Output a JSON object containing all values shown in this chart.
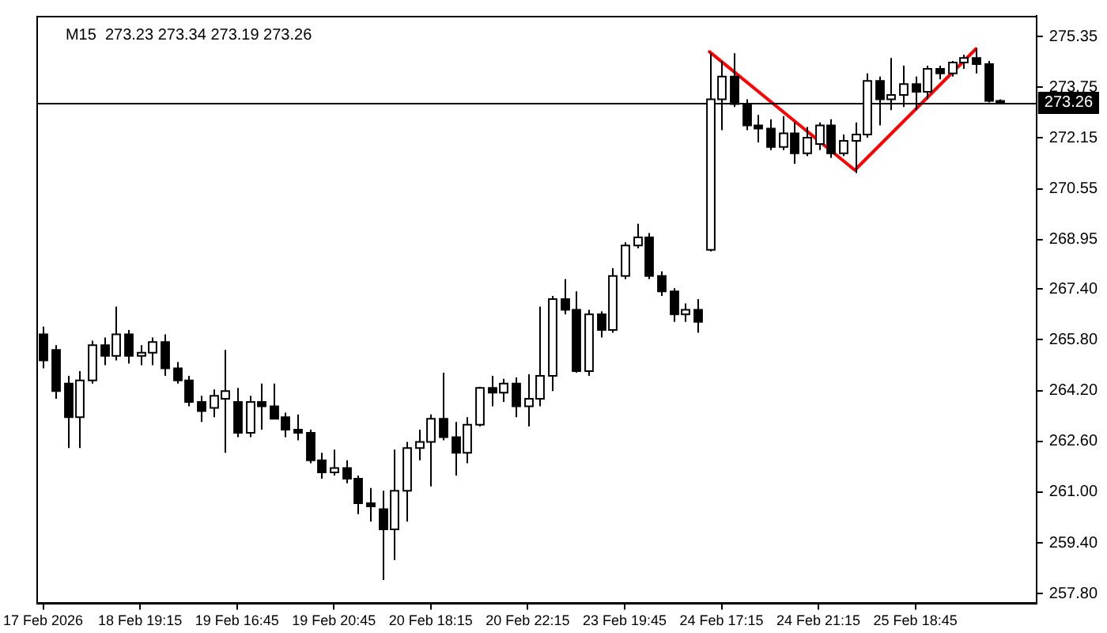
{
  "chart_data": {
    "type": "candlestick",
    "title": "M15  273.23 273.34 273.19 273.26",
    "color": "#000000",
    "categories": [
      "17 Feb 2026",
      null,
      null,
      null,
      null,
      null,
      null,
      null,
      "18 Feb 19:15",
      null,
      null,
      null,
      null,
      null,
      null,
      null,
      "19 Feb 16:45",
      null,
      null,
      null,
      null,
      null,
      null,
      null,
      "19 Feb 20:45",
      null,
      null,
      null,
      null,
      null,
      null,
      null,
      "20 Feb 18:15",
      null,
      null,
      null,
      null,
      null,
      null,
      null,
      "20 Feb 22:15",
      null,
      null,
      null,
      null,
      null,
      null,
      null,
      "23 Feb 19:45",
      null,
      null,
      null,
      null,
      null,
      null,
      null,
      "24 Feb 17:15",
      null,
      null,
      null,
      null,
      null,
      null,
      null,
      "24 Feb 21:15",
      null,
      null,
      null,
      null,
      null,
      null,
      null,
      "25 Feb 18:45",
      null,
      null,
      null,
      null,
      null,
      null,
      null
    ],
    "ohlc": [
      [
        265.97,
        266.21,
        264.9,
        265.15
      ],
      [
        265.48,
        265.63,
        263.94,
        264.18
      ],
      [
        264.42,
        264.66,
        262.39,
        263.36
      ],
      [
        263.36,
        264.81,
        262.39,
        264.52
      ],
      [
        264.52,
        265.77,
        264.42,
        265.63
      ],
      [
        265.63,
        265.87,
        265.0,
        265.29
      ],
      [
        265.29,
        266.84,
        265.15,
        265.97
      ],
      [
        265.97,
        266.11,
        265.05,
        265.29
      ],
      [
        265.29,
        265.63,
        265.0,
        265.39
      ],
      [
        265.39,
        265.87,
        265.0,
        265.73
      ],
      [
        265.73,
        265.97,
        264.66,
        264.9
      ],
      [
        264.9,
        265.1,
        264.42,
        264.52
      ],
      [
        264.52,
        264.66,
        263.7,
        263.84
      ],
      [
        263.84,
        264.03,
        263.21,
        263.55
      ],
      [
        263.65,
        264.23,
        263.36,
        264.03
      ],
      [
        263.94,
        265.48,
        262.24,
        264.18
      ],
      [
        263.84,
        264.28,
        262.73,
        262.87
      ],
      [
        262.87,
        264.03,
        262.73,
        263.84
      ],
      [
        263.84,
        264.42,
        262.97,
        263.7
      ],
      [
        263.7,
        264.42,
        263.31,
        263.31
      ],
      [
        263.36,
        263.5,
        262.73,
        262.97
      ],
      [
        262.97,
        263.45,
        262.63,
        262.87
      ],
      [
        262.87,
        262.97,
        261.91,
        262.0
      ],
      [
        262.0,
        262.24,
        261.42,
        261.62
      ],
      [
        261.62,
        262.34,
        261.52,
        261.76
      ],
      [
        261.76,
        262.0,
        261.28,
        261.42
      ],
      [
        261.42,
        261.52,
        260.31,
        260.65
      ],
      [
        260.65,
        261.13,
        260.07,
        260.55
      ],
      [
        260.46,
        261.04,
        258.23,
        259.83
      ],
      [
        259.83,
        262.34,
        258.86,
        261.04
      ],
      [
        261.04,
        262.58,
        260.07,
        262.39
      ],
      [
        262.39,
        262.97,
        262.0,
        262.58
      ],
      [
        262.58,
        263.45,
        261.18,
        263.31
      ],
      [
        263.31,
        264.76,
        262.63,
        262.73
      ],
      [
        262.73,
        263.21,
        261.52,
        262.24
      ],
      [
        262.24,
        263.36,
        261.91,
        263.12
      ],
      [
        263.12,
        264.32,
        263.07,
        264.28
      ],
      [
        264.28,
        264.66,
        263.7,
        264.13
      ],
      [
        264.13,
        264.57,
        263.84,
        264.42
      ],
      [
        264.42,
        264.61,
        263.36,
        263.7
      ],
      [
        263.7,
        264.71,
        263.07,
        263.94
      ],
      [
        263.94,
        266.84,
        263.7,
        264.66
      ],
      [
        264.66,
        267.18,
        264.18,
        267.08
      ],
      [
        267.08,
        267.71,
        266.6,
        266.74
      ],
      [
        266.74,
        267.32,
        264.76,
        264.81
      ],
      [
        264.81,
        266.74,
        264.66,
        266.6
      ],
      [
        266.6,
        266.69,
        265.87,
        266.11
      ],
      [
        266.11,
        268.05,
        266.02,
        267.81
      ],
      [
        267.81,
        268.87,
        267.71,
        268.77
      ],
      [
        268.77,
        269.45,
        268.68,
        269.02
      ],
      [
        269.02,
        269.16,
        267.71,
        267.81
      ],
      [
        267.81,
        267.95,
        267.18,
        267.32
      ],
      [
        267.32,
        267.42,
        266.36,
        266.6
      ],
      [
        266.6,
        266.94,
        266.36,
        266.74
      ],
      [
        266.74,
        267.08,
        266.02,
        266.36
      ],
      [
        268.63,
        274.82,
        268.58,
        273.37
      ],
      [
        273.37,
        274.58,
        272.4,
        274.09
      ],
      [
        274.09,
        274.82,
        273.13,
        273.22
      ],
      [
        273.22,
        273.37,
        272.4,
        272.55
      ],
      [
        272.55,
        272.88,
        272.01,
        272.45
      ],
      [
        272.45,
        272.74,
        271.77,
        271.87
      ],
      [
        271.87,
        272.84,
        271.77,
        272.3
      ],
      [
        272.3,
        272.64,
        271.34,
        271.67
      ],
      [
        271.67,
        272.5,
        271.58,
        272.16
      ],
      [
        271.96,
        272.64,
        271.77,
        272.55
      ],
      [
        272.55,
        272.74,
        271.53,
        271.67
      ],
      [
        271.67,
        272.26,
        271.58,
        272.06
      ],
      [
        272.06,
        272.64,
        271.05,
        272.26
      ],
      [
        272.26,
        274.19,
        272.16,
        273.95
      ],
      [
        273.95,
        274.09,
        272.55,
        273.37
      ],
      [
        273.37,
        274.67,
        273.03,
        273.51
      ],
      [
        273.51,
        274.43,
        273.13,
        273.85
      ],
      [
        273.85,
        274.09,
        273.03,
        273.61
      ],
      [
        273.61,
        274.43,
        273.37,
        274.33
      ],
      [
        274.33,
        274.43,
        274.0,
        274.19
      ],
      [
        274.19,
        274.58,
        274.09,
        274.53
      ],
      [
        274.53,
        274.77,
        274.33,
        274.67
      ],
      [
        274.67,
        274.96,
        274.19,
        274.48
      ],
      [
        274.48,
        274.58,
        273.27,
        273.32
      ],
      [
        273.32,
        273.37,
        273.22,
        273.26
      ]
    ],
    "series": [
      {
        "type": "line",
        "color": "#ff0000",
        "values": [
          null,
          null,
          null,
          null,
          null,
          null,
          null,
          null,
          null,
          null,
          null,
          null,
          null,
          null,
          null,
          null,
          null,
          null,
          null,
          null,
          null,
          null,
          null,
          null,
          null,
          null,
          null,
          null,
          null,
          null,
          null,
          null,
          null,
          null,
          null,
          null,
          null,
          null,
          null,
          null,
          null,
          null,
          null,
          null,
          null,
          null,
          null,
          null,
          null,
          null,
          null,
          null,
          null,
          null,
          null,
          274.87,
          null,
          null,
          null,
          null,
          null,
          null,
          null,
          null,
          null,
          null,
          null,
          271.14,
          null,
          null,
          null,
          null,
          null,
          null,
          null,
          null,
          null,
          274.96,
          null,
          null
        ]
      }
    ],
    "ylim": [
      257.5,
      276.0
    ],
    "yticks": [
      {
        "value": 257.8,
        "label": "257.80"
      },
      {
        "value": 259.4,
        "label": "259.40"
      },
      {
        "value": 261,
        "label": "261.00"
      },
      {
        "value": 262.6,
        "label": "262.60"
      },
      {
        "value": 264.2,
        "label": "264.20"
      },
      {
        "value": 265.8,
        "label": "265.80"
      },
      {
        "value": 267.4,
        "label": "267.40"
      },
      268.95,
      270.55,
      272.15,
      273.75,
      275.35
    ],
    "ref_lines": [
      {
        "axis": "y",
        "value": 273.26,
        "label": "273.26",
        "color": "#000000"
      }
    ],
    "grid": false
  }
}
